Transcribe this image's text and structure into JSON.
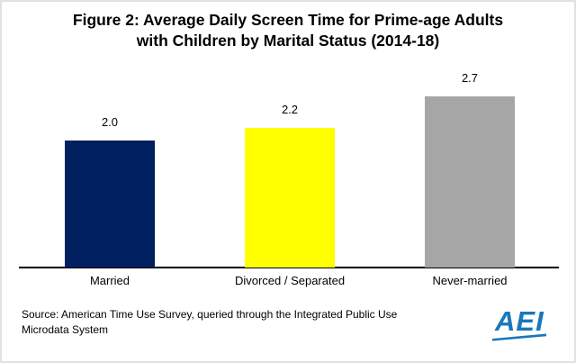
{
  "title": {
    "line1": "Figure 2: Average Daily Screen Time for Prime-age Adults",
    "line2": "with Children by Marital Status (2014-18)"
  },
  "source": {
    "line1": "Source: American Time Use Survey, queried through the Integrated Public Use",
    "line2": "Microdata System"
  },
  "logo": {
    "text": "AEI",
    "color": "#1977BC"
  },
  "colors": {
    "bar_navy": "#002060",
    "bar_yellow": "#FFFF00",
    "bar_gray": "#A6A6A6",
    "axis": "#000000",
    "frame_border": "#E2E2E2"
  },
  "chart_data": {
    "type": "bar",
    "title": "Figure 2: Average Daily Screen Time for Prime-age Adults with Children by Marital Status (2014-18)",
    "categories": [
      "Married",
      "Divorced / Separated",
      "Never-married"
    ],
    "values": [
      2.0,
      2.2,
      2.7
    ],
    "value_labels": [
      "2.0",
      "2.2",
      "2.7"
    ],
    "bar_colors": [
      "#002060",
      "#FFFF00",
      "#A6A6A6"
    ],
    "xlabel": "",
    "ylabel": "",
    "ylim": [
      0,
      3
    ],
    "grid": false,
    "legend_position": "none"
  }
}
